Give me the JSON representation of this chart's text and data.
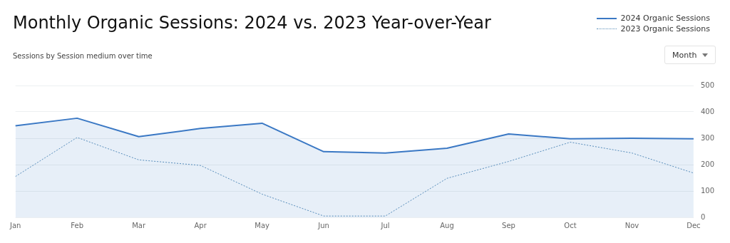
{
  "chart_data": {
    "type": "line",
    "title": "Monthly Organic Sessions: 2024 vs. 2023 Year-over-Year",
    "subtitle": "Sessions by Session medium over time",
    "annotations": [
      "Month"
    ],
    "categories": [
      "Jan",
      "Feb",
      "Mar",
      "Apr",
      "May",
      "Jun",
      "Jul",
      "Aug",
      "Sep",
      "Oct",
      "Nov",
      "Dec"
    ],
    "series": [
      {
        "name": "2024 Organic Sessions",
        "type": "area",
        "color": "#3a78c4",
        "line_style": "solid",
        "values": [
          347,
          376,
          306,
          337,
          357,
          249,
          244,
          262,
          316,
          298,
          300,
          298
        ]
      },
      {
        "name": "2023 Organic Sessions",
        "color": "#5b8fb9",
        "line_style": "dotted",
        "values": [
          155,
          303,
          218,
          197,
          88,
          5,
          5,
          148,
          212,
          285,
          244,
          168
        ]
      }
    ],
    "ylim": [
      0,
      500
    ],
    "yticks": [
      0,
      100,
      200,
      300,
      400,
      500
    ],
    "grid": "y",
    "legend": "top right",
    "marker": "none"
  }
}
